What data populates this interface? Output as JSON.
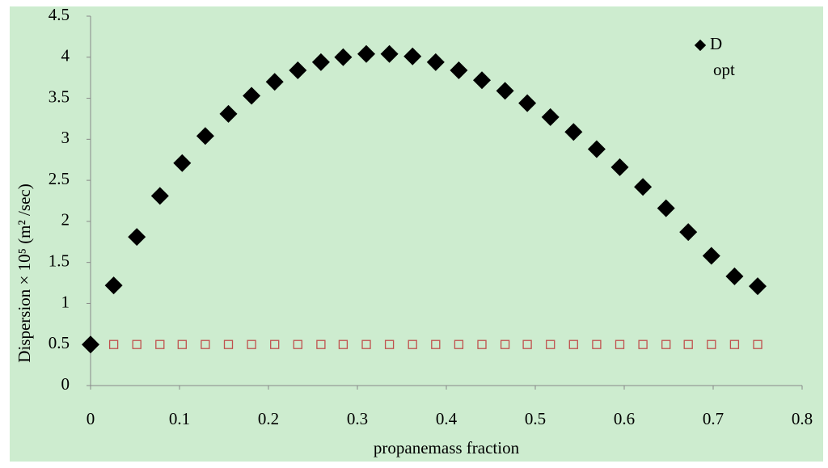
{
  "chart_data": {
    "type": "scatter",
    "x_label": "propanemass fraction",
    "y_label": "Dispersion × 10⁵ (m² /sec)",
    "xlim": [
      0,
      0.8
    ],
    "xticks": [
      0,
      0.1,
      0.2,
      0.3,
      0.4,
      0.5,
      0.6,
      0.7,
      0.8
    ],
    "ylim": [
      0,
      4.5
    ],
    "yticks": [
      0,
      0.5,
      1,
      1.5,
      2,
      2.5,
      3,
      3.5,
      4,
      4.5
    ],
    "legend": "top-right",
    "series": [
      {
        "name": "D opt",
        "color": "#000000",
        "marker": "diamond",
        "x": [
          0,
          0.026,
          0.052,
          0.078,
          0.103,
          0.129,
          0.155,
          0.181,
          0.207,
          0.233,
          0.259,
          0.284,
          0.31,
          0.336,
          0.362,
          0.388,
          0.414,
          0.44,
          0.466,
          0.491,
          0.517,
          0.543,
          0.569,
          0.595,
          0.621,
          0.647,
          0.672,
          0.698,
          0.724,
          0.75
        ],
        "values": [
          0.5,
          1.22,
          1.81,
          2.31,
          2.71,
          3.04,
          3.31,
          3.53,
          3.7,
          3.84,
          3.94,
          4.0,
          4.04,
          4.04,
          4.01,
          3.94,
          3.84,
          3.72,
          3.59,
          3.44,
          3.27,
          3.09,
          2.88,
          2.66,
          2.42,
          2.16,
          1.87,
          1.58,
          1.33,
          1.21
        ]
      },
      {
        "color": "#c0504d",
        "marker": "square-open",
        "x": [
          0,
          0.026,
          0.052,
          0.078,
          0.103,
          0.129,
          0.155,
          0.181,
          0.207,
          0.233,
          0.259,
          0.284,
          0.31,
          0.336,
          0.362,
          0.388,
          0.414,
          0.44,
          0.466,
          0.491,
          0.517,
          0.543,
          0.569,
          0.595,
          0.621,
          0.647,
          0.672,
          0.698,
          0.724,
          0.75
        ],
        "values": [
          0.5,
          0.5,
          0.5,
          0.5,
          0.5,
          0.5,
          0.5,
          0.5,
          0.5,
          0.5,
          0.5,
          0.5,
          0.5,
          0.5,
          0.5,
          0.5,
          0.5,
          0.5,
          0.5,
          0.5,
          0.5,
          0.5,
          0.5,
          0.5,
          0.5,
          0.5,
          0.5,
          0.5,
          0.5,
          0.5
        ]
      }
    ]
  }
}
